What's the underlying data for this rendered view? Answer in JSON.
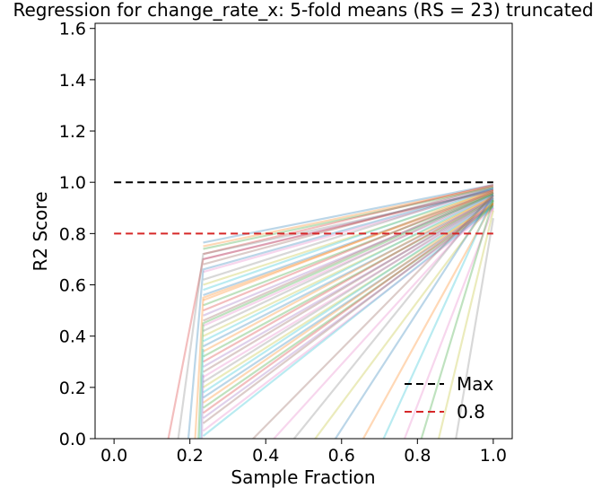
{
  "chart_data": {
    "type": "line",
    "title": "Regression for change_rate_x: 5-fold means (RS = 23) truncated",
    "xlabel": "Sample Fraction",
    "ylabel": "R2 Score",
    "xlim": [
      -0.05,
      1.05
    ],
    "ylim": [
      0.0,
      1.62
    ],
    "xticks": [
      0.0,
      0.2,
      0.4,
      0.6,
      0.8,
      1.0
    ],
    "xtick_labels": [
      "0.0",
      "0.2",
      "0.4",
      "0.6",
      "0.8",
      "1.0"
    ],
    "yticks": [
      0.0,
      0.2,
      0.4,
      0.6,
      0.8,
      1.0,
      1.2,
      1.4,
      1.6
    ],
    "ytick_labels": [
      "0.0",
      "0.2",
      "0.4",
      "0.6",
      "0.8",
      "1.0",
      "1.2",
      "1.4",
      "1.6"
    ],
    "grid": false,
    "legend": {
      "placement": "lower-right",
      "entries": [
        {
          "label": "Max",
          "color": "#000000",
          "style": "dashed"
        },
        {
          "label": "0.8",
          "color": "#d62728",
          "style": "dashed"
        }
      ]
    },
    "reference_lines": [
      {
        "name": "Max",
        "y": 1.0,
        "x": [
          0.0,
          1.0
        ],
        "color": "#000000"
      },
      {
        "name": "0.8",
        "y": 0.8,
        "x": [
          0.0,
          1.0
        ],
        "color": "#d62728"
      }
    ],
    "series_alpha": 0.3,
    "series": [
      {
        "x": [
          0.235,
          1.0
        ],
        "y": [
          0.765,
          0.99
        ],
        "color": "#1f77b4"
      },
      {
        "x": [
          0.235,
          1.0
        ],
        "y": [
          0.75,
          0.985
        ],
        "color": "#ff7f0e"
      },
      {
        "x": [
          0.235,
          1.0
        ],
        "y": [
          0.74,
          0.98
        ],
        "color": "#2ca02c"
      },
      {
        "x": [
          0.235,
          1.0
        ],
        "y": [
          0.72,
          0.99
        ],
        "color": "#d62728"
      },
      {
        "x": [
          0.235,
          1.0
        ],
        "y": [
          0.7,
          0.975
        ],
        "color": "#9467bd"
      },
      {
        "x": [
          0.235,
          1.0
        ],
        "y": [
          0.68,
          0.985
        ],
        "color": "#8c564b"
      },
      {
        "x": [
          0.235,
          1.0
        ],
        "y": [
          0.65,
          0.97
        ],
        "color": "#e377c2"
      },
      {
        "x": [
          0.235,
          1.0
        ],
        "y": [
          0.62,
          0.98
        ],
        "color": "#7f7f7f"
      },
      {
        "x": [
          0.235,
          1.0
        ],
        "y": [
          0.6,
          0.965
        ],
        "color": "#bcbd22"
      },
      {
        "x": [
          0.235,
          1.0
        ],
        "y": [
          0.58,
          0.975
        ],
        "color": "#17becf"
      },
      {
        "x": [
          0.235,
          1.0
        ],
        "y": [
          0.56,
          0.96
        ],
        "color": "#1f77b4"
      },
      {
        "x": [
          0.235,
          1.0
        ],
        "y": [
          0.54,
          0.97
        ],
        "color": "#ff7f0e"
      },
      {
        "x": [
          0.235,
          1.0
        ],
        "y": [
          0.52,
          0.955
        ],
        "color": "#2ca02c"
      },
      {
        "x": [
          0.235,
          1.0
        ],
        "y": [
          0.5,
          0.965
        ],
        "color": "#d62728"
      },
      {
        "x": [
          0.235,
          1.0
        ],
        "y": [
          0.48,
          0.95
        ],
        "color": "#9467bd"
      },
      {
        "x": [
          0.235,
          1.0
        ],
        "y": [
          0.46,
          0.96
        ],
        "color": "#8c564b"
      },
      {
        "x": [
          0.235,
          1.0
        ],
        "y": [
          0.44,
          0.945
        ],
        "color": "#e377c2"
      },
      {
        "x": [
          0.235,
          1.0
        ],
        "y": [
          0.42,
          0.955
        ],
        "color": "#7f7f7f"
      },
      {
        "x": [
          0.235,
          1.0
        ],
        "y": [
          0.4,
          0.94
        ],
        "color": "#bcbd22"
      },
      {
        "x": [
          0.235,
          1.0
        ],
        "y": [
          0.38,
          0.95
        ],
        "color": "#17becf"
      },
      {
        "x": [
          0.235,
          1.0
        ],
        "y": [
          0.36,
          0.935
        ],
        "color": "#1f77b4"
      },
      {
        "x": [
          0.235,
          1.0
        ],
        "y": [
          0.34,
          0.945
        ],
        "color": "#ff7f0e"
      },
      {
        "x": [
          0.235,
          1.0
        ],
        "y": [
          0.32,
          0.93
        ],
        "color": "#2ca02c"
      },
      {
        "x": [
          0.235,
          1.0
        ],
        "y": [
          0.3,
          0.94
        ],
        "color": "#d62728"
      },
      {
        "x": [
          0.235,
          1.0
        ],
        "y": [
          0.28,
          0.925
        ],
        "color": "#9467bd"
      },
      {
        "x": [
          0.235,
          1.0
        ],
        "y": [
          0.26,
          0.935
        ],
        "color": "#8c564b"
      },
      {
        "x": [
          0.235,
          1.0
        ],
        "y": [
          0.24,
          0.92
        ],
        "color": "#e377c2"
      },
      {
        "x": [
          0.235,
          1.0
        ],
        "y": [
          0.22,
          0.93
        ],
        "color": "#7f7f7f"
      },
      {
        "x": [
          0.235,
          1.0
        ],
        "y": [
          0.2,
          0.915
        ],
        "color": "#bcbd22"
      },
      {
        "x": [
          0.235,
          1.0
        ],
        "y": [
          0.18,
          0.925
        ],
        "color": "#17becf"
      },
      {
        "x": [
          0.235,
          1.0
        ],
        "y": [
          0.16,
          0.91
        ],
        "color": "#1f77b4"
      },
      {
        "x": [
          0.235,
          1.0
        ],
        "y": [
          0.14,
          0.92
        ],
        "color": "#ff7f0e"
      },
      {
        "x": [
          0.235,
          1.0
        ],
        "y": [
          0.12,
          0.905
        ],
        "color": "#2ca02c"
      },
      {
        "x": [
          0.235,
          1.0
        ],
        "y": [
          0.1,
          0.915
        ],
        "color": "#d62728"
      },
      {
        "x": [
          0.235,
          1.0
        ],
        "y": [
          0.08,
          0.9
        ],
        "color": "#9467bd"
      },
      {
        "x": [
          0.235,
          1.0
        ],
        "y": [
          0.06,
          0.91
        ],
        "color": "#8c564b"
      },
      {
        "x": [
          0.235,
          1.0
        ],
        "y": [
          0.03,
          0.895
        ],
        "color": "#e377c2"
      },
      {
        "x": [
          0.235,
          1.0
        ],
        "y": [
          0.01,
          0.905
        ],
        "color": "#17becf"
      },
      {
        "x": [
          0.13,
          0.235,
          1.0
        ],
        "y": [
          -0.1,
          0.7,
          0.97
        ],
        "color": "#d62728"
      },
      {
        "x": [
          0.16,
          0.235,
          1.0
        ],
        "y": [
          -0.1,
          0.72,
          0.965
        ],
        "color": "#7f7f7f"
      },
      {
        "x": [
          0.19,
          0.235,
          1.0
        ],
        "y": [
          -0.1,
          0.66,
          0.975
        ],
        "color": "#1f77b4"
      },
      {
        "x": [
          0.21,
          0.235,
          1.0
        ],
        "y": [
          -0.1,
          0.55,
          0.96
        ],
        "color": "#ff7f0e"
      },
      {
        "x": [
          0.22,
          0.235,
          1.0
        ],
        "y": [
          -0.1,
          0.45,
          0.955
        ],
        "color": "#2ca02c"
      },
      {
        "x": [
          0.225,
          0.235
        ],
        "y": [
          -0.1,
          0.35
        ],
        "color": "#17becf"
      },
      {
        "x": [
          0.23,
          0.235
        ],
        "y": [
          -0.1,
          0.25
        ],
        "color": "#9467bd"
      },
      {
        "x": [
          0.3,
          1.0
        ],
        "y": [
          -0.1,
          0.95
        ],
        "color": "#8c564b"
      },
      {
        "x": [
          0.36,
          1.0
        ],
        "y": [
          -0.1,
          0.94
        ],
        "color": "#e377c2"
      },
      {
        "x": [
          0.42,
          1.0
        ],
        "y": [
          -0.1,
          0.96
        ],
        "color": "#7f7f7f"
      },
      {
        "x": [
          0.48,
          1.0
        ],
        "y": [
          -0.1,
          0.93
        ],
        "color": "#bcbd22"
      },
      {
        "x": [
          0.54,
          1.0
        ],
        "y": [
          -0.1,
          0.95
        ],
        "color": "#1f77b4"
      },
      {
        "x": [
          0.62,
          1.0
        ],
        "y": [
          -0.1,
          0.92
        ],
        "color": "#ff7f0e"
      },
      {
        "x": [
          0.68,
          1.0
        ],
        "y": [
          -0.1,
          0.94
        ],
        "color": "#17becf"
      },
      {
        "x": [
          0.74,
          1.0
        ],
        "y": [
          -0.1,
          0.9
        ],
        "color": "#e377c2"
      },
      {
        "x": [
          0.79,
          1.0
        ],
        "y": [
          -0.1,
          0.93
        ],
        "color": "#2ca02c"
      },
      {
        "x": [
          0.84,
          1.0
        ],
        "y": [
          -0.1,
          0.89
        ],
        "color": "#bcbd22"
      },
      {
        "x": [
          0.89,
          1.0
        ],
        "y": [
          -0.1,
          0.86
        ],
        "color": "#7f7f7f"
      }
    ]
  }
}
